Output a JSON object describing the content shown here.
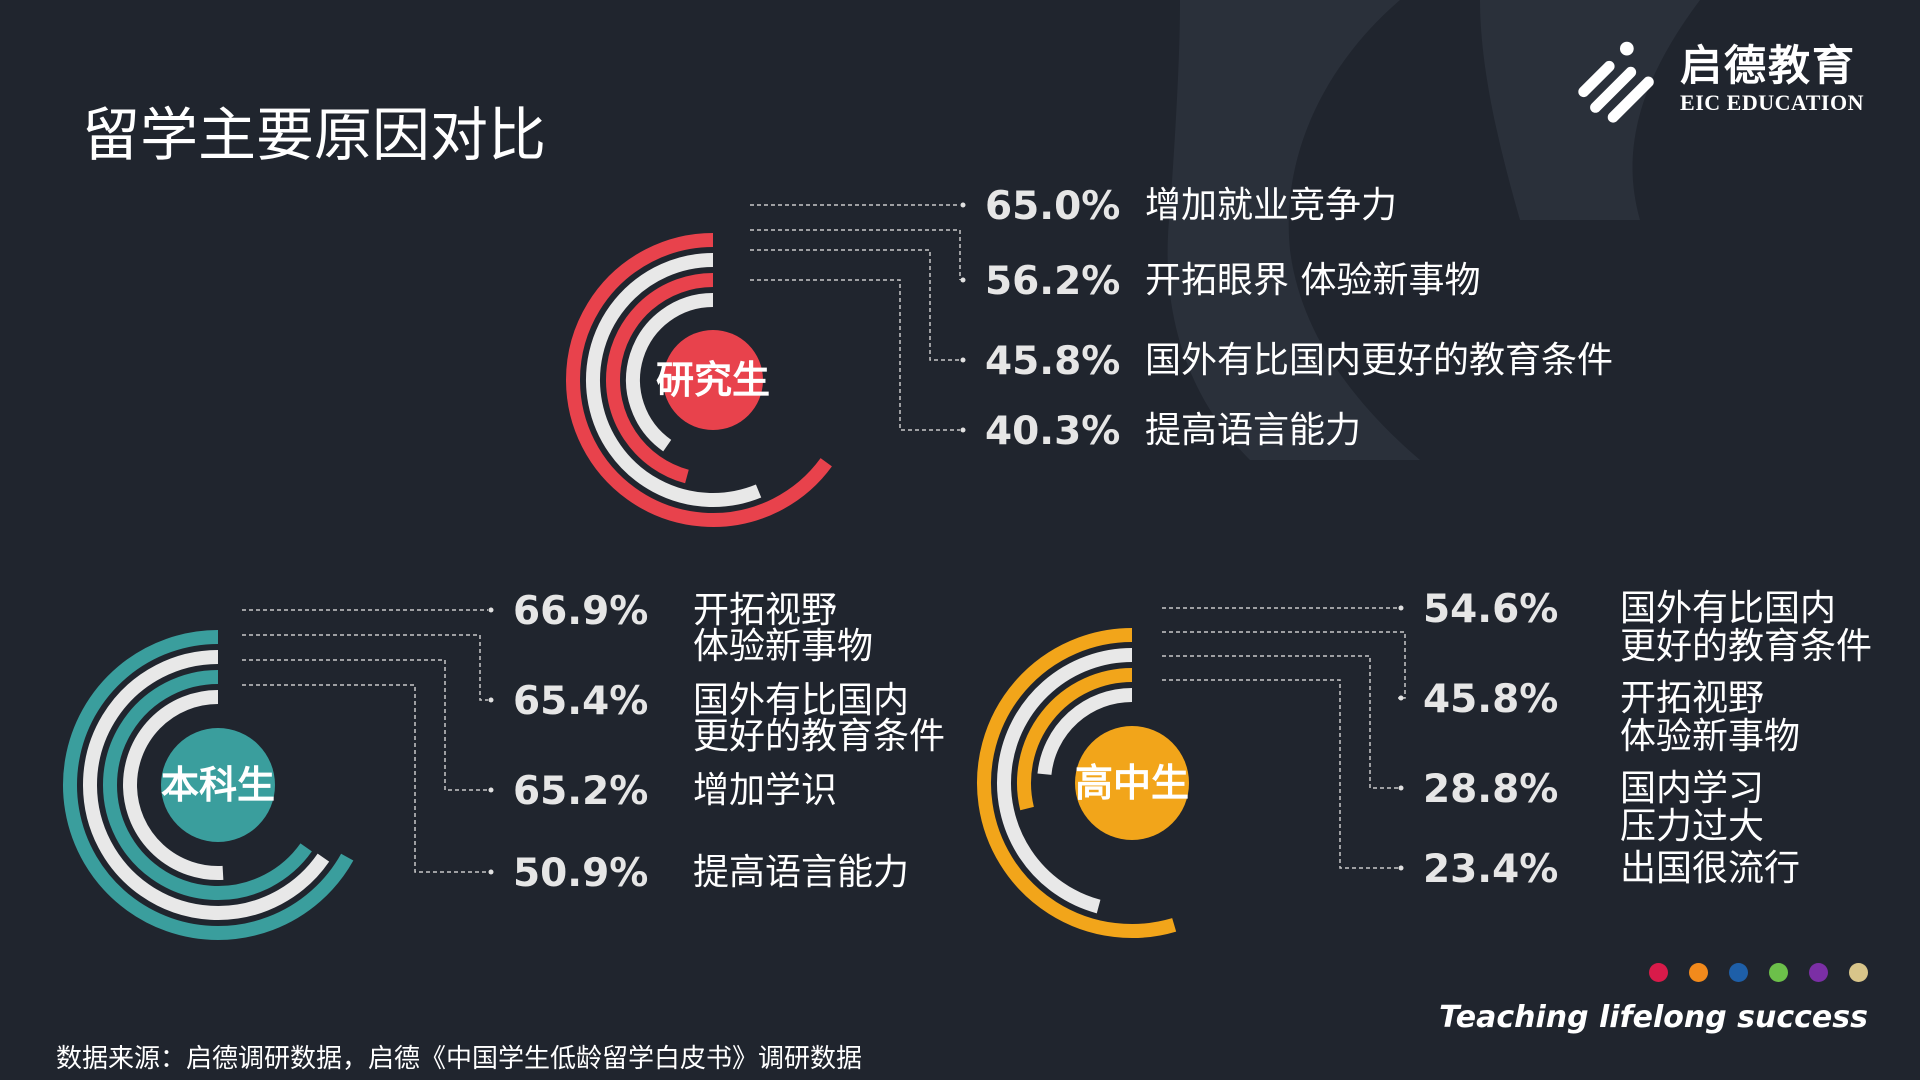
{
  "title": "留学主要原因对比",
  "logo": {
    "name_cn": "启德教育",
    "name_en": "EIC EDUCATION"
  },
  "chart_data": [
    {
      "type": "radial-bar",
      "center_label": "研究生",
      "color": "#e8424c",
      "ring_colors": [
        "#e8424c",
        "#e8e8e8",
        "#e8424c",
        "#e8e8e8"
      ],
      "unit": "%",
      "categories": [
        "增加就业竞争力",
        "开拓眼界 体验新事物",
        "国外有比国内更好的教育条件",
        "提高语言能力"
      ],
      "label_lines": [
        [
          "增加就业竞争力"
        ],
        [
          "开拓眼界 体验新事物"
        ],
        [
          "国外有比国内更好的教育条件"
        ],
        [
          "提高语言能力"
        ]
      ],
      "values": [
        65.0,
        56.2,
        45.8,
        40.3
      ],
      "value_labels": [
        "65.0%",
        "56.2%",
        "45.8%",
        "40.3%"
      ]
    },
    {
      "type": "radial-bar",
      "center_label": "本科生",
      "color": "#3a9e9d",
      "ring_colors": [
        "#3a9e9d",
        "#e8e8e8",
        "#3a9e9d",
        "#e8e8e8"
      ],
      "unit": "%",
      "categories": [
        "开拓视野 体验新事物",
        "国外有比国内更好的教育条件",
        "增加学识",
        "提高语言能力"
      ],
      "label_lines": [
        [
          "开拓视野",
          "体验新事物"
        ],
        [
          "国外有比国内",
          "更好的教育条件"
        ],
        [
          "增加学识"
        ],
        [
          "提高语言能力"
        ]
      ],
      "values": [
        66.9,
        65.4,
        65.2,
        50.9
      ],
      "value_labels": [
        "66.9%",
        "65.4%",
        "65.2%",
        "50.9%"
      ]
    },
    {
      "type": "radial-bar",
      "center_label": "高中生",
      "color": "#f2a51a",
      "ring_colors": [
        "#f2a51a",
        "#e8e8e8",
        "#f2a51a",
        "#e8e8e8"
      ],
      "unit": "%",
      "categories": [
        "国外有比国内更好的教育条件",
        "开拓视野 体验新事物",
        "国内学习压力过大",
        "出国很流行"
      ],
      "label_lines": [
        [
          "国外有比国内",
          "更好的教育条件"
        ],
        [
          "开拓视野",
          "体验新事物"
        ],
        [
          "国内学习",
          "压力过大"
        ],
        [
          "出国很流行"
        ]
      ],
      "values": [
        54.6,
        45.8,
        28.8,
        23.4
      ],
      "value_labels": [
        "54.6%",
        "45.8%",
        "28.8%",
        "23.4%"
      ]
    }
  ],
  "footer": {
    "dot_colors": [
      "#d81b4a",
      "#f28a1c",
      "#1e5fa8",
      "#6cc04a",
      "#7b2fa5",
      "#d8c58a"
    ],
    "tagline": "Teaching lifelong success",
    "source": "数据来源：启德调研数据，启德《中国学生低龄留学白皮书》调研数据"
  }
}
